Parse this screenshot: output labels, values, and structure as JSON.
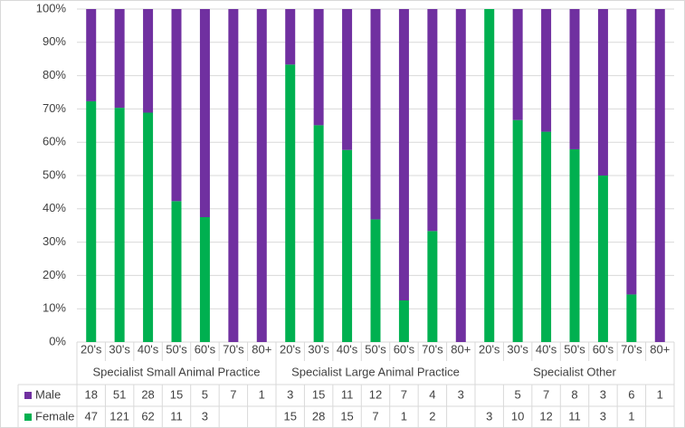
{
  "chart_data": {
    "type": "bar",
    "stacking": "percent",
    "categories": [
      "20's",
      "30's",
      "40's",
      "50's",
      "60's",
      "70's",
      "80+",
      "20's",
      "30's",
      "40's",
      "50's",
      "60's",
      "70's",
      "80+",
      "20's",
      "30's",
      "40's",
      "50's",
      "60's",
      "70's",
      "80+"
    ],
    "groups": [
      "Specialist Small Animal Practice",
      "Specialist Large Animal Practice",
      "Specialist Other"
    ],
    "series": [
      {
        "name": "Male",
        "color": "#7030a0",
        "values": [
          18,
          51,
          28,
          15,
          5,
          7,
          1,
          3,
          15,
          11,
          12,
          7,
          4,
          3,
          null,
          5,
          7,
          8,
          3,
          6,
          1
        ]
      },
      {
        "name": "Female",
        "color": "#00b050",
        "values": [
          47,
          121,
          62,
          11,
          3,
          null,
          null,
          15,
          28,
          15,
          7,
          1,
          2,
          null,
          3,
          10,
          12,
          11,
          3,
          1,
          null
        ]
      }
    ],
    "ylim": [
      0,
      100
    ],
    "yticks": [
      {
        "value": 0,
        "label": "0%"
      },
      {
        "value": 10,
        "label": "10%"
      },
      {
        "value": 20,
        "label": "20%"
      },
      {
        "value": 30,
        "label": "30%"
      },
      {
        "value": 40,
        "label": "40%"
      },
      {
        "value": 50,
        "label": "50%"
      },
      {
        "value": 60,
        "label": "60%"
      },
      {
        "value": 70,
        "label": "70%"
      },
      {
        "value": 80,
        "label": "80%"
      },
      {
        "value": 90,
        "label": "90%"
      },
      {
        "value": 100,
        "label": "100%"
      }
    ],
    "grid": true
  }
}
